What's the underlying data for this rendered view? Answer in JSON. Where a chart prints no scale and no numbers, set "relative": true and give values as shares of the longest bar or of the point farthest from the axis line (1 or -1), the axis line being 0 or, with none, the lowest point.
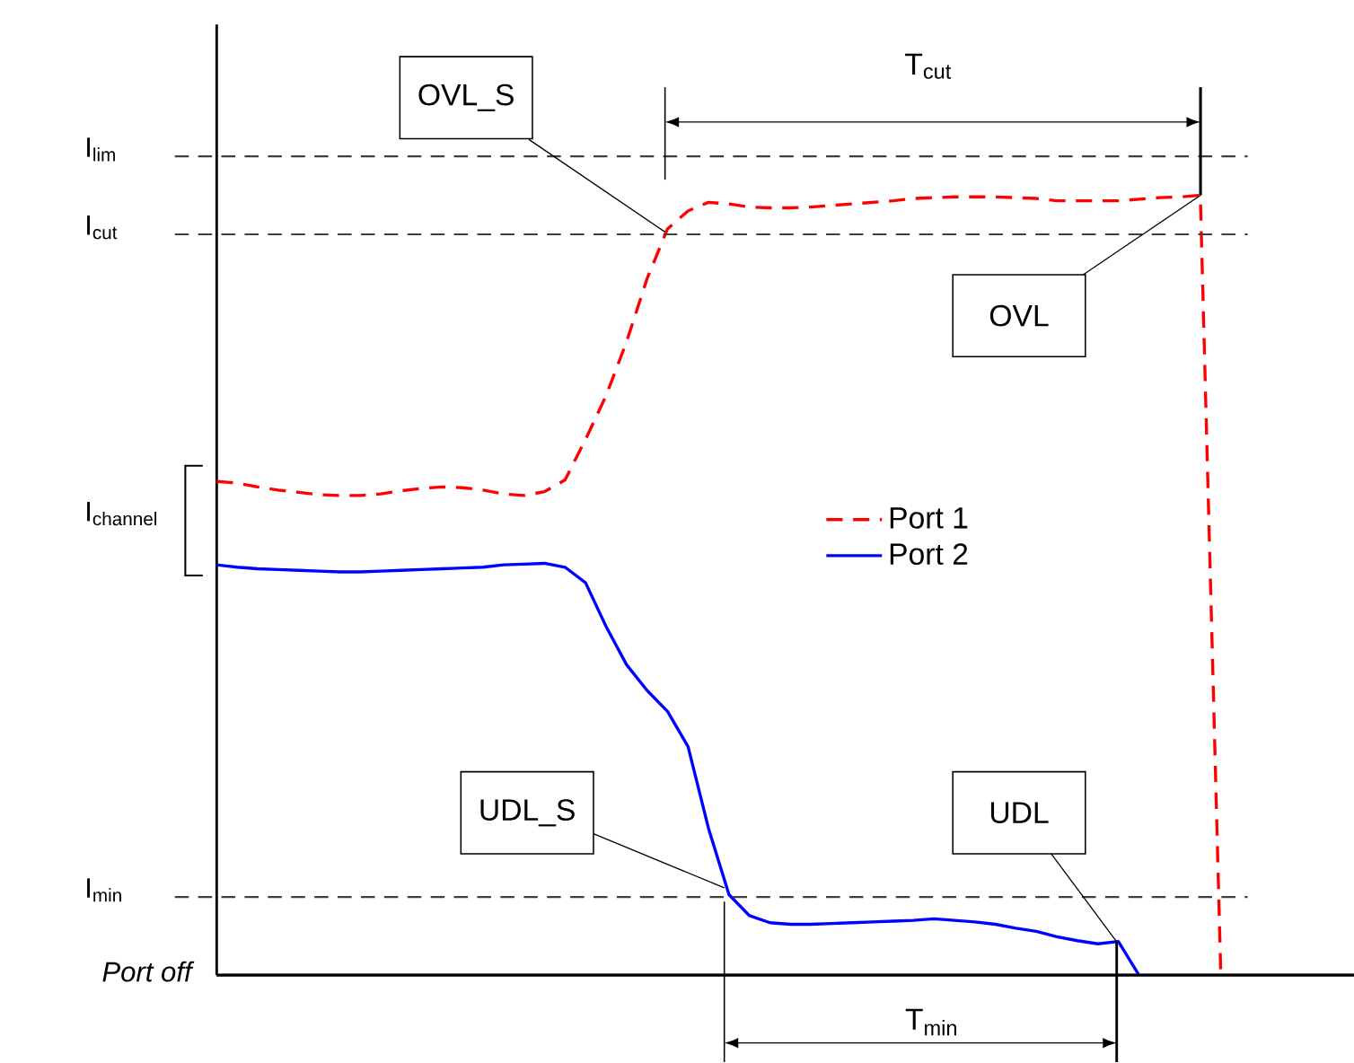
{
  "chart_data": {
    "type": "line",
    "relative": true,
    "legend": "center",
    "marker": "none",
    "categories": [
      null,
      null,
      null,
      null,
      null,
      null,
      null,
      null,
      null,
      null,
      null,
      null,
      null,
      null,
      null,
      null,
      null,
      null,
      null,
      null,
      null,
      null,
      null,
      null,
      null,
      null,
      null,
      null,
      null,
      null,
      null,
      null,
      null,
      null,
      null,
      null,
      null,
      null,
      null,
      null,
      null,
      null,
      null,
      null,
      null,
      null,
      null,
      null,
      null,
      null,
      null,
      null,
      null,
      null,
      null,
      null
    ],
    "series": [
      {
        "name": "Port 1",
        "color": "#ff0000",
        "line_style": "dashed",
        "values": [
          0.633,
          0.631,
          0.626,
          0.622,
          0.619,
          0.616,
          0.615,
          0.615,
          0.617,
          0.621,
          0.624,
          0.626,
          0.625,
          0.622,
          0.617,
          0.615,
          0.62,
          0.635,
          0.687,
          0.743,
          0.812,
          0.893,
          0.957,
          0.98,
          0.991,
          0.989,
          0.985,
          0.984,
          0.984,
          0.985,
          0.987,
          0.989,
          0.991,
          0.993,
          0.996,
          0.997,
          0.998,
          0.998,
          0.998,
          0.997,
          0.996,
          0.993,
          0.993,
          0.993,
          0.993,
          0.995,
          0.997,
          0.998,
          1.0,
          0,
          null,
          null,
          null,
          null,
          null,
          null
        ]
      },
      {
        "name": "Port 2",
        "color": "#0000ff",
        "line_style": "solid",
        "values": [
          0.526,
          0.523,
          0.521,
          0.52,
          0.519,
          0.518,
          0.517,
          0.517,
          0.518,
          0.519,
          0.52,
          0.521,
          0.522,
          0.523,
          0.526,
          0.527,
          0.528,
          0.523,
          0.503,
          0.447,
          0.398,
          0.365,
          0.338,
          0.293,
          0.188,
          0.103,
          0.076,
          0.067,
          0.065,
          0.065,
          0.066,
          0.067,
          0.068,
          0.069,
          0.07,
          0.072,
          0.07,
          0.068,
          0.065,
          0.06,
          0.056,
          0.049,
          0.044,
          0.04,
          0.043,
          0,
          null,
          null,
          null,
          null,
          null,
          null,
          null,
          null,
          null,
          null
        ]
      }
    ],
    "ref_lines": [
      {
        "axis": "y",
        "value": 1.05,
        "label": "I$_{lim}$",
        "color": "#404040",
        "line_style": "dashed"
      },
      {
        "axis": "y",
        "value": 0.95,
        "label": "I$_{cut}$",
        "color": "#404040",
        "line_style": "dashed"
      },
      {
        "axis": "y",
        "value": 0.1,
        "label": "I$_{min}$",
        "color": "#404040",
        "line_style": "dashed"
      },
      {
        "axis": "y",
        "value": 0,
        "label": "Port off",
        "color": "#000000",
        "line_style": "solid"
      }
    ],
    "annotations": [
      "OVL_S",
      "OVL",
      "UDL_S",
      "UDL",
      "T$_{cut}$",
      "T$_{min}$",
      "I$_{channel}$"
    ]
  }
}
